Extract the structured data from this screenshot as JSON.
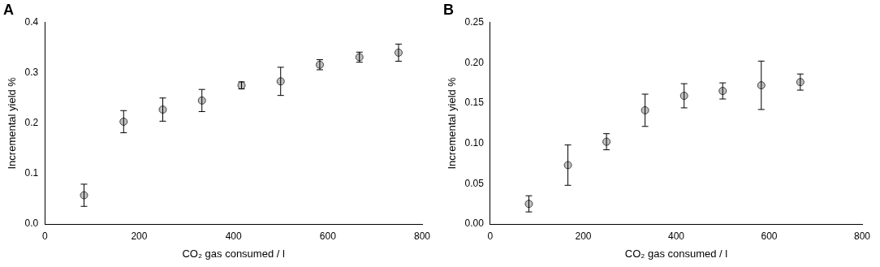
{
  "chart_data": [
    {
      "type": "scatter",
      "title": "A",
      "x_label": "CO₂ gas consumed / l",
      "y_label": "Incremental yield %",
      "x": [
        83,
        167,
        250,
        333,
        417,
        500,
        583,
        667,
        750
      ],
      "values": [
        0.057,
        0.203,
        0.227,
        0.245,
        0.275,
        0.283,
        0.316,
        0.331,
        0.34
      ],
      "errors": [
        0.022,
        0.022,
        0.023,
        0.022,
        0.007,
        0.028,
        0.01,
        0.01,
        0.017
      ],
      "color": "#bfbfbf",
      "marker": "circle",
      "xlim": [
        0,
        800
      ],
      "xticks": [
        0,
        200,
        400,
        600,
        800
      ],
      "ylim": [
        0,
        0.4
      ],
      "yticks": [
        {
          "value": 0,
          "label": "0.0"
        },
        0.1,
        0.2,
        0.3,
        0.4
      ],
      "grid": false
    },
    {
      "type": "scatter",
      "title": "B",
      "x_label": "CO₂ gas consumed / l",
      "y_label": "Incremental yield %",
      "x": [
        83,
        167,
        250,
        333,
        417,
        500,
        583,
        667
      ],
      "values": [
        0.025,
        0.073,
        0.102,
        0.141,
        0.159,
        0.165,
        0.172,
        0.176
      ],
      "errors": [
        0.01,
        0.025,
        0.01,
        0.02,
        0.015,
        0.01,
        0.03,
        0.01
      ],
      "color": "#bfbfbf",
      "marker": "circle",
      "xlim": [
        0,
        800
      ],
      "xticks": [
        0,
        200,
        400,
        600,
        800
      ],
      "ylim": [
        0,
        0.25
      ],
      "yticks": [
        {
          "value": 0,
          "label": "0.00"
        },
        0.05,
        {
          "value": 0.1,
          "label": "0.10"
        },
        0.15,
        {
          "value": 0.2,
          "label": "0.20"
        },
        0.25
      ],
      "grid": false
    }
  ]
}
